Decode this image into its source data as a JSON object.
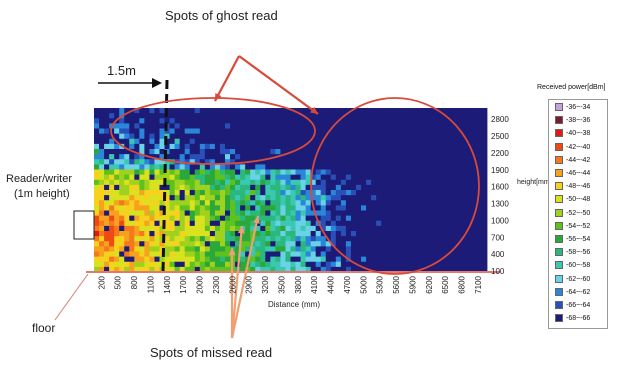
{
  "annotations": {
    "ghost_title": "Spots of ghost read",
    "missed_title": "Spots of missed read",
    "distance_marker": "1.5m",
    "reader_label_line1": "Reader/writer",
    "reader_label_line2": "(1m height)",
    "floor_label": "floor"
  },
  "chart_data": {
    "type": "heatmap",
    "title": "",
    "xlabel": "Distance (mm)",
    "ylabel": "height[mm]",
    "x_ticks": [
      "200",
      "500",
      "800",
      "1100",
      "1400",
      "1700",
      "2000",
      "2300",
      "2600",
      "2900",
      "3200",
      "3500",
      "3800",
      "4100",
      "4400",
      "4700",
      "5000",
      "5300",
      "5600",
      "5900",
      "6200",
      "6500",
      "6800",
      "7100"
    ],
    "y_ticks": [
      "2800",
      "2500",
      "2200",
      "1900",
      "1600",
      "1300",
      "1000",
      "700",
      "400",
      "100"
    ],
    "legend": {
      "title": "Received power[dBm]",
      "placement": "right",
      "entries": [
        {
          "label": "-36~-34",
          "color": "#c8a0e0"
        },
        {
          "label": "-38~-36",
          "color": "#7a1a2a"
        },
        {
          "label": "-40~-38",
          "color": "#e01818"
        },
        {
          "label": "-42~-40",
          "color": "#f04a14"
        },
        {
          "label": "-44~-42",
          "color": "#f5781e"
        },
        {
          "label": "-46~-44",
          "color": "#f6a21e"
        },
        {
          "label": "-48~-46",
          "color": "#f6d21e"
        },
        {
          "label": "-50~-48",
          "color": "#d8e21e"
        },
        {
          "label": "-52~-50",
          "color": "#9ed21e"
        },
        {
          "label": "-54~-52",
          "color": "#5ec21e"
        },
        {
          "label": "-56~-54",
          "color": "#2aa83a"
        },
        {
          "label": "-58~-56",
          "color": "#2ab87e"
        },
        {
          "label": "-60~-58",
          "color": "#3ac8b2"
        },
        {
          "label": "-62~-60",
          "color": "#6ad2e6"
        },
        {
          "label": "-64~-62",
          "color": "#2a86d8"
        },
        {
          "label": "-66~-64",
          "color": "#2850b8"
        },
        {
          "label": "-68~-66",
          "color": "#1c1c78"
        }
      ]
    }
  }
}
